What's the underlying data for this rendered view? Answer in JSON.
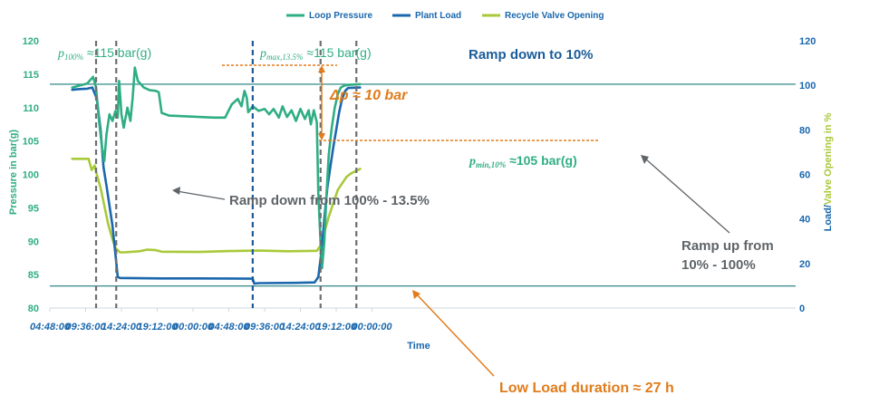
{
  "chart_data": {
    "type": "line",
    "title": "",
    "xlabel": "Time",
    "ylabel_left": "Pressure in bar(g)",
    "ylabel_right_part1": "Load/",
    "ylabel_right_part2": "Valve Opening in %",
    "ylim_left": [
      80,
      120
    ],
    "ylim_right": [
      0,
      120
    ],
    "xlim_hours": [
      0,
      100
    ],
    "left_ticks": [
      "80",
      "85",
      "90",
      "95",
      "100",
      "105",
      "110",
      "115",
      "120"
    ],
    "right_ticks": [
      "0",
      "20",
      "40",
      "60",
      "80",
      "100",
      "120"
    ],
    "x_ticks": [
      {
        "label": "04:48:00",
        "hour": 0
      },
      {
        "label": "09:36:00",
        "hour": 4.8
      },
      {
        "label": "14:24:00",
        "hour": 9.6
      },
      {
        "label": "19:12:00",
        "hour": 14.4
      },
      {
        "label": "00:00:00",
        "hour": 19.2
      },
      {
        "label": "04:48:00",
        "hour": 24
      },
      {
        "label": "09:36:00",
        "hour": 28.8
      },
      {
        "label": "14:24:00",
        "hour": 33.6
      },
      {
        "label": "19:12:00",
        "hour": 38.4
      },
      {
        "label": "00:00:00",
        "hour": 43.2
      }
    ],
    "legend": [
      {
        "name": "Loop Pressure",
        "color": "#2fae83"
      },
      {
        "name": "Plant Load",
        "color": "#1a67ad"
      },
      {
        "name": "Recycle Valve Opening",
        "color": "#a9c93a"
      }
    ],
    "series": [
      {
        "name": "Loop Pressure",
        "axis": "left",
        "color": "#2fae83",
        "points": [
          [
            3,
            113.0
          ],
          [
            4,
            113.3
          ],
          [
            5,
            113.6
          ],
          [
            5.8,
            114.6
          ],
          [
            6.2,
            113.0
          ],
          [
            6.6,
            108
          ],
          [
            7.0,
            104
          ],
          [
            7.3,
            102
          ],
          [
            7.6,
            106
          ],
          [
            8.0,
            109
          ],
          [
            8.4,
            108
          ],
          [
            8.8,
            109.5
          ],
          [
            9.1,
            108.5
          ],
          [
            9.3,
            114
          ],
          [
            9.6,
            109
          ],
          [
            9.9,
            107
          ],
          [
            10.4,
            110
          ],
          [
            10.8,
            108
          ],
          [
            11.1,
            111.5
          ],
          [
            11.4,
            116
          ],
          [
            11.8,
            114
          ],
          [
            12.6,
            113.0
          ],
          [
            13.4,
            112.6
          ],
          [
            14.2,
            112.5
          ],
          [
            14.6,
            112.3
          ],
          [
            15.0,
            109.2
          ],
          [
            16,
            108.8
          ],
          [
            18,
            108.7
          ],
          [
            20,
            108.6
          ],
          [
            22,
            108.5
          ],
          [
            23.5,
            108.5
          ],
          [
            24.4,
            110.5
          ],
          [
            25.2,
            111.3
          ],
          [
            25.7,
            110.2
          ],
          [
            26.1,
            112.5
          ],
          [
            26.4,
            111.5
          ],
          [
            26.6,
            109.3
          ],
          [
            27.2,
            110.2
          ],
          [
            28.0,
            109.5
          ],
          [
            28.8,
            109.8
          ],
          [
            29.4,
            109.0
          ],
          [
            30.0,
            109.8
          ],
          [
            30.7,
            108.5
          ],
          [
            31.2,
            110.2
          ],
          [
            31.8,
            108.6
          ],
          [
            32.4,
            109.6
          ],
          [
            33.0,
            108.0
          ],
          [
            33.6,
            109.8
          ],
          [
            34.2,
            108.3
          ],
          [
            34.7,
            109.6
          ],
          [
            35.0,
            107.5
          ],
          [
            35.4,
            109.6
          ],
          [
            35.8,
            107.8
          ],
          [
            36.0,
            97
          ],
          [
            36.3,
            90
          ],
          [
            36.5,
            86
          ],
          [
            36.8,
            90
          ],
          [
            37.1,
            97
          ],
          [
            37.4,
            103
          ],
          [
            37.8,
            107
          ],
          [
            38.2,
            110
          ],
          [
            38.6,
            112
          ],
          [
            39.0,
            113
          ],
          [
            39.5,
            113.3
          ],
          [
            40.0,
            113.4
          ],
          [
            41.6,
            113.5
          ]
        ]
      },
      {
        "name": "Plant Load",
        "axis": "right",
        "color": "#1a67ad",
        "points": [
          [
            3,
            98
          ],
          [
            4,
            98.3
          ],
          [
            5,
            98.5
          ],
          [
            5.7,
            99
          ],
          [
            6.3,
            94
          ],
          [
            6.8,
            80
          ],
          [
            7.2,
            63
          ],
          [
            7.6,
            55
          ],
          [
            8.0,
            46
          ],
          [
            8.4,
            37
          ],
          [
            8.8,
            24
          ],
          [
            9.1,
            14
          ],
          [
            9.4,
            13.5
          ],
          [
            15,
            13.3
          ],
          [
            20,
            13.3
          ],
          [
            27.2,
            13.2
          ],
          [
            27.4,
            11
          ],
          [
            28,
            11.2
          ],
          [
            33,
            11.3
          ],
          [
            35.5,
            11.5
          ],
          [
            36.0,
            14
          ],
          [
            36.4,
            25
          ],
          [
            36.8,
            40
          ],
          [
            37.2,
            54
          ],
          [
            37.6,
            63
          ],
          [
            38.0,
            72
          ],
          [
            38.4,
            80
          ],
          [
            38.8,
            88
          ],
          [
            39.2,
            94
          ],
          [
            39.6,
            97.5
          ],
          [
            40.0,
            98.8
          ],
          [
            41.6,
            99
          ]
        ]
      },
      {
        "name": "Recycle Valve Opening",
        "axis": "right",
        "color": "#a9c93a",
        "points": [
          [
            3,
            67
          ],
          [
            4,
            67
          ],
          [
            5.2,
            67
          ],
          [
            5.6,
            62
          ],
          [
            6.0,
            64
          ],
          [
            6.3,
            60
          ],
          [
            6.8,
            54
          ],
          [
            7.3,
            46
          ],
          [
            7.8,
            38
          ],
          [
            8.3,
            32
          ],
          [
            8.8,
            27
          ],
          [
            9.4,
            25
          ],
          [
            10,
            25
          ],
          [
            12,
            25.5
          ],
          [
            13,
            26.2
          ],
          [
            14.2,
            26
          ],
          [
            15,
            25.3
          ],
          [
            20,
            25.2
          ],
          [
            24,
            25.6
          ],
          [
            28,
            25.8
          ],
          [
            32,
            25.5
          ],
          [
            35.8,
            25.7
          ],
          [
            36.3,
            28
          ],
          [
            36.8,
            34
          ],
          [
            37.4,
            41
          ],
          [
            38.0,
            47
          ],
          [
            38.6,
            53
          ],
          [
            39.2,
            56
          ],
          [
            39.8,
            59
          ],
          [
            40.4,
            60.5
          ],
          [
            41.6,
            62.5
          ]
        ]
      }
    ],
    "event_lines_hours": [
      6.2,
      8.9,
      27.2,
      36.3,
      41.1
    ],
    "reference_lines": [
      {
        "axis": "left",
        "value": 113.5,
        "color": "#1a7c7e"
      },
      {
        "axis": "left",
        "value": 83.3,
        "color": "#1a7c7e"
      }
    ]
  },
  "annotations": {
    "p100_symbol": "p",
    "p100_sub": "100%",
    "p100_value": " ≈115 bar(g)",
    "pmax_symbol": "p",
    "pmax_sub": "max,13.5%",
    "pmax_value": " ≈115 bar(g)",
    "delta_p": "Δp ≈ 10 bar",
    "ramp_down_10": "Ramp down to 10%",
    "pmin_symbol": "p",
    "pmin_sub": "min,10%",
    "pmin_value": " ≈105 bar(g)",
    "ramp_down_from": "Ramp down from 100% - 13.5%",
    "ramp_up_line1": "Ramp up from",
    "ramp_up_line2": "10% - 100%",
    "low_load": "Low Load duration ≈ 27 h"
  }
}
